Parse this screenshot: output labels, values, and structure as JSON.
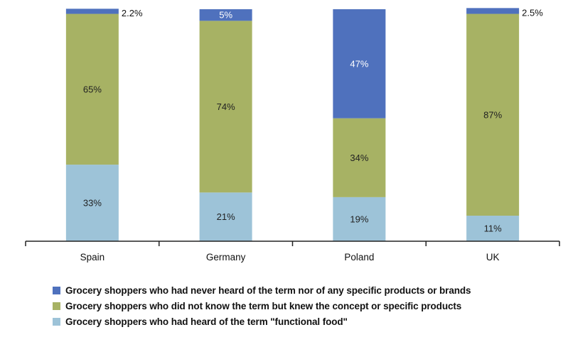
{
  "chart_data": {
    "type": "bar",
    "stacked": true,
    "categories": [
      "Spain",
      "Germany",
      "Poland",
      "UK"
    ],
    "series": [
      {
        "name": "Grocery shoppers who had heard of the term \"functional food\"",
        "color": "#9dc3d8",
        "values": [
          33,
          21,
          19,
          11
        ],
        "labels": [
          "33%",
          "21%",
          "19%",
          "11%"
        ]
      },
      {
        "name": "Grocery shoppers who did not know the term but knew the concept or specific products",
        "color": "#a7b264",
        "values": [
          65,
          74,
          34,
          87
        ],
        "labels": [
          "65%",
          "74%",
          "34%",
          "87%"
        ]
      },
      {
        "name": "Grocery shoppers who had never heard of the term nor of any specific products or brands",
        "color": "#4f71bd",
        "values": [
          2.2,
          5,
          47,
          2.5
        ],
        "labels": [
          "2.2%",
          "5%",
          "47%",
          "2.5%"
        ]
      }
    ],
    "ylim": [
      0,
      100
    ],
    "grid": false,
    "legend_position": "bottom"
  },
  "legend": {
    "order": [
      2,
      1,
      0
    ]
  }
}
